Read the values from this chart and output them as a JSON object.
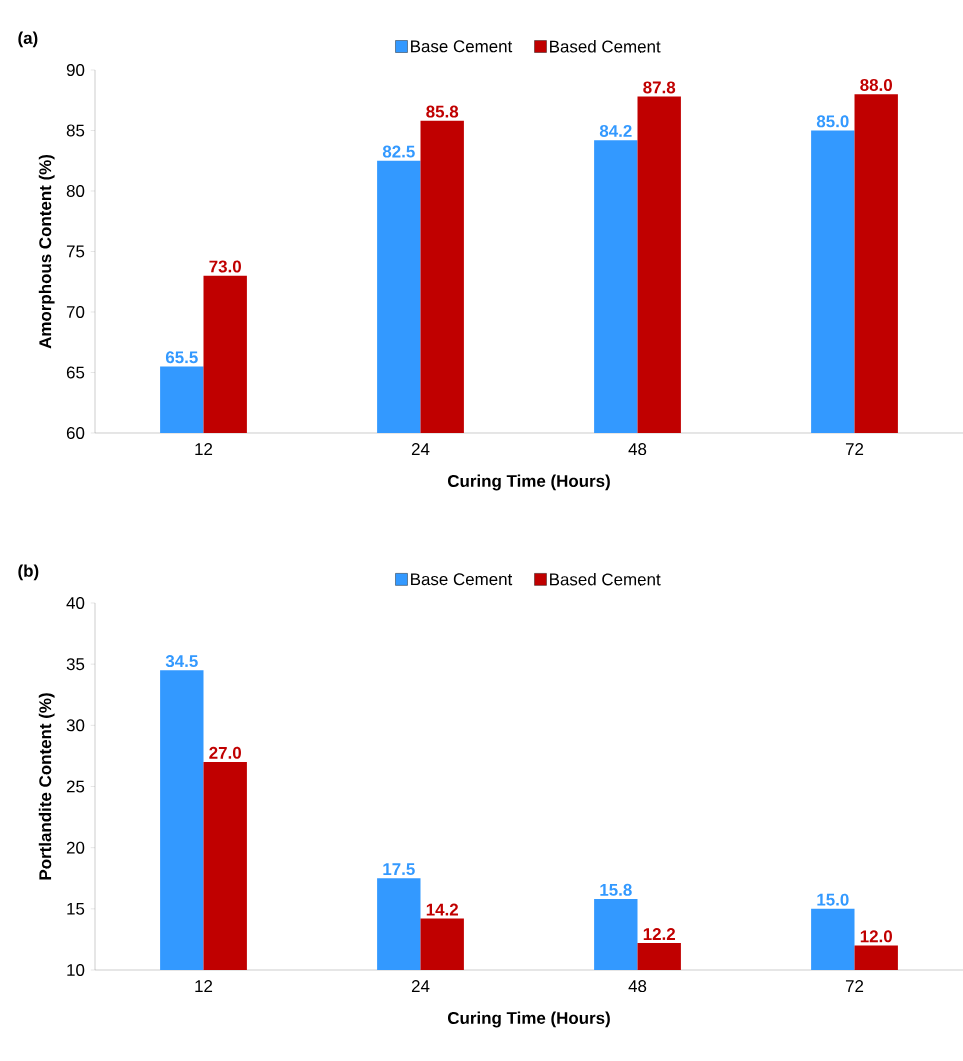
{
  "chart_data": [
    {
      "type": "bar",
      "title": "(a)",
      "xlabel": "Curing Time (Hours)",
      "ylabel": "Amorphous Content (%)",
      "categories": [
        "12",
        "24",
        "48",
        "72"
      ],
      "ylim": [
        60,
        90
      ],
      "yticks": [
        60,
        65,
        70,
        75,
        80,
        85,
        90
      ],
      "legend": "top",
      "grid": false,
      "series": [
        {
          "name": "Base Cement",
          "color": "#3399ff",
          "values": [
            65.5,
            82.5,
            84.2,
            85.0
          ],
          "value_labels": [
            "65.5",
            "82.5",
            "84.2",
            "85.0"
          ]
        },
        {
          "name": "Based Cement",
          "color": "#c00000",
          "values": [
            73.0,
            85.8,
            87.8,
            88.0
          ],
          "value_labels": [
            "73.0",
            "85.8",
            "87.8",
            "88.0"
          ]
        }
      ]
    },
    {
      "type": "bar",
      "title": "(b)",
      "xlabel": "Curing Time (Hours)",
      "ylabel": "Portlandite Content (%)",
      "categories": [
        "12",
        "24",
        "48",
        "72"
      ],
      "ylim": [
        10,
        40
      ],
      "yticks": [
        10,
        15,
        20,
        25,
        30,
        35,
        40
      ],
      "legend": "top",
      "grid": false,
      "series": [
        {
          "name": "Base Cement",
          "color": "#3399ff",
          "values": [
            34.5,
            17.5,
            15.8,
            15.0
          ],
          "value_labels": [
            "34.5",
            "17.5",
            "15.8",
            "15.0"
          ]
        },
        {
          "name": "Based Cement",
          "color": "#c00000",
          "values": [
            27.0,
            14.2,
            12.2,
            12.0
          ],
          "value_labels": [
            "27.0",
            "14.2",
            "12.2",
            "12.0"
          ]
        }
      ]
    }
  ]
}
